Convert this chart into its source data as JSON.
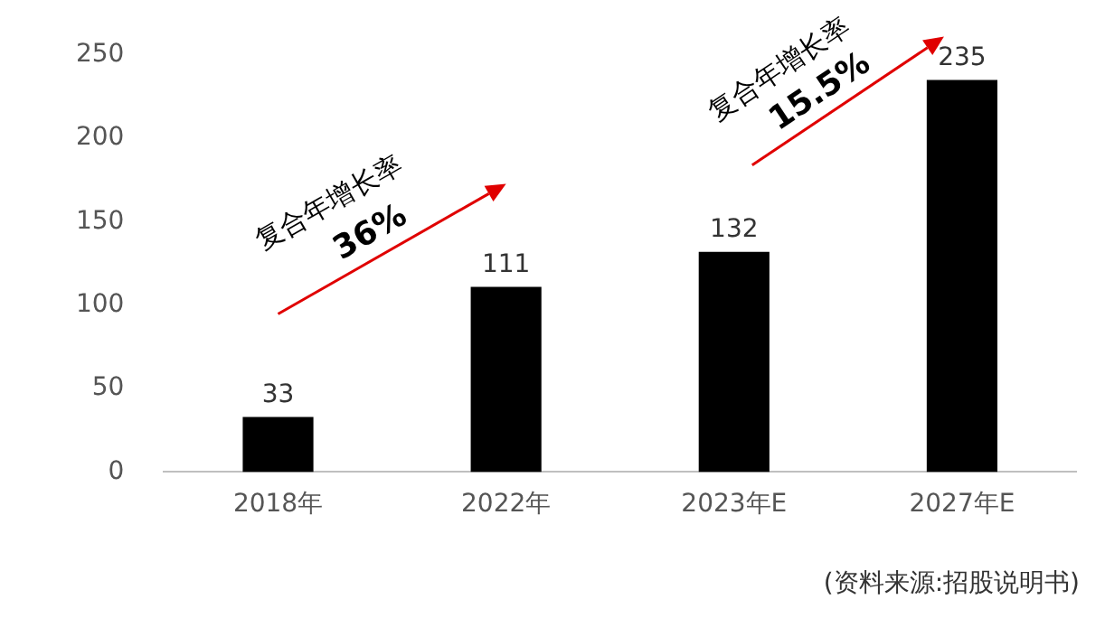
{
  "chart_data": {
    "type": "bar",
    "categories": [
      "2018年",
      "2022年",
      "2023年E",
      "2027年E"
    ],
    "values": [
      33,
      111,
      132,
      235
    ],
    "color": "#000000",
    "ylim": [
      0,
      250
    ],
    "yticks": [
      0,
      50,
      100,
      150,
      200,
      250
    ],
    "grid": false,
    "legend": false,
    "data_labels": true,
    "annotations": [
      "复合年增长率",
      "36%",
      "复合年增长率",
      "15.5%",
      "(资料来源:招股说明书)"
    ]
  }
}
